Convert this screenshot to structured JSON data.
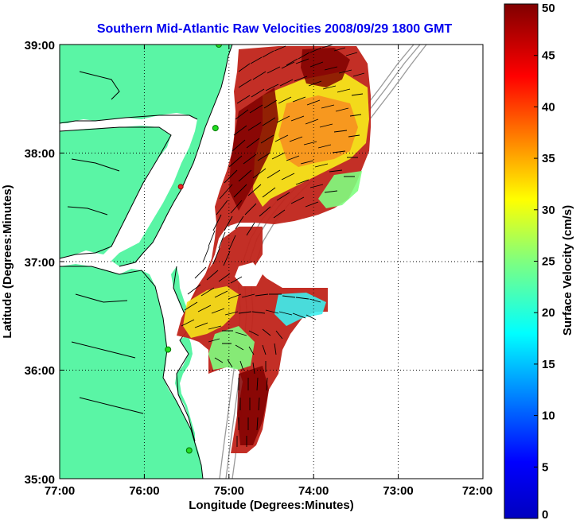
{
  "title": "Southern Mid-Atlantic Raw Velocities 2008/09/29 1800 GMT",
  "map": {
    "xlabel": "Longitude (Degrees:Minutes)",
    "ylabel": "Latitude (Degrees:Minutes)",
    "lon_range": [
      -77,
      -72
    ],
    "lat_range": [
      35,
      39
    ],
    "x_ticks": [
      {
        "value": -77,
        "label": "77:00"
      },
      {
        "value": -76,
        "label": "76:00"
      },
      {
        "value": -75,
        "label": "75:00"
      },
      {
        "value": -74,
        "label": "74:00"
      },
      {
        "value": -73,
        "label": "73:00"
      },
      {
        "value": -72,
        "label": "72:00"
      }
    ],
    "y_ticks": [
      {
        "value": 35,
        "label": "35:00"
      },
      {
        "value": 36,
        "label": "36:00"
      },
      {
        "value": 37,
        "label": "37:00"
      },
      {
        "value": 38,
        "label": "38:00"
      },
      {
        "value": 39,
        "label": "39:00"
      }
    ],
    "grid": "dotted",
    "land_color": "#5af5a5",
    "stations_green": [
      {
        "lon": -75.12,
        "lat": 39.0
      },
      {
        "lon": -75.16,
        "lat": 38.23
      },
      {
        "lon": -75.72,
        "lat": 36.19
      },
      {
        "lon": -75.47,
        "lat": 35.26
      }
    ],
    "station_red": {
      "lon": -75.57,
      "lat": 37.69
    }
  },
  "colorbar": {
    "label": "Surface Velocity (cm/s)",
    "min": 0,
    "max": 50,
    "ticks": [
      "0",
      "5",
      "10",
      "15",
      "20",
      "25",
      "30",
      "35",
      "40",
      "45",
      "50"
    ],
    "colormap": "jet"
  }
}
